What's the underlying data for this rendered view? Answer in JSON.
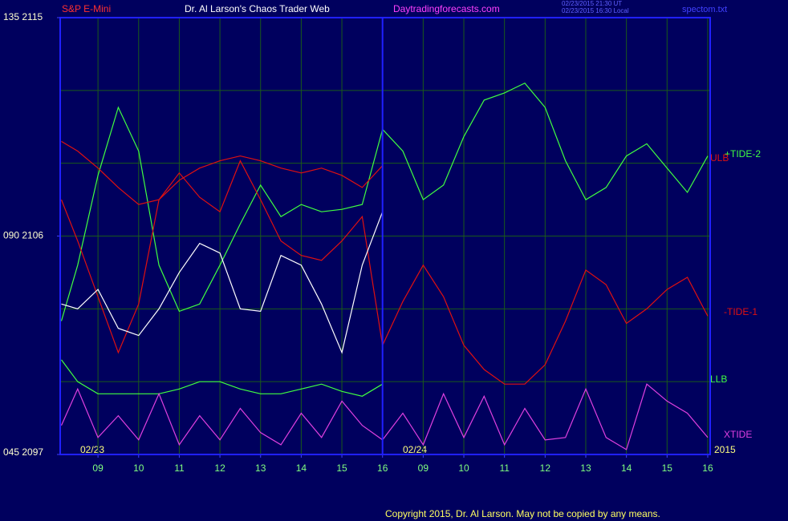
{
  "chart_data": {
    "type": "line",
    "title": "Dr. Al Larson's Chaos Trader Web",
    "symbol": "S&P E-Mini",
    "website": "Daytradingforecasts.com",
    "timestamps": [
      "02/23/2015 21:30 UT",
      "02/23/2015 16:30 Local"
    ],
    "file": "spectom.txt",
    "copyright": "Copyright 2015, Dr. Al Larson. May not be copied by any means.",
    "date_labels": [
      "02/23",
      "02/24"
    ],
    "year_label": "2015",
    "x": [
      -0.9,
      -0.5,
      0,
      0.5,
      1,
      1.5,
      2,
      2.5,
      3,
      3.5,
      4,
      4.5,
      5,
      5.5,
      6,
      6.5,
      7,
      7.5,
      8,
      8.5,
      9,
      9.5,
      10,
      10.5,
      11,
      11.5,
      12,
      12.5,
      13,
      13.5,
      14,
      14.5,
      15
    ],
    "xlim": [
      -0.93,
      15.06
    ],
    "xticks": [
      {
        "value": 0,
        "label": "09"
      },
      {
        "value": 1,
        "label": "10"
      },
      {
        "value": 2,
        "label": "11"
      },
      {
        "value": 3,
        "label": "12"
      },
      {
        "value": 4,
        "label": "13"
      },
      {
        "value": 5,
        "label": "14"
      },
      {
        "value": 6,
        "label": "15"
      },
      {
        "value": 7,
        "label": "16"
      },
      {
        "value": 8,
        "label": "09"
      },
      {
        "value": 9,
        "label": "10"
      },
      {
        "value": 10,
        "label": "11"
      },
      {
        "value": 11,
        "label": "12"
      },
      {
        "value": 12,
        "label": "13"
      },
      {
        "value": 13,
        "label": "14"
      },
      {
        "value": 14,
        "label": "15"
      },
      {
        "value": 15,
        "label": "16"
      }
    ],
    "now_x": 7,
    "ylim": [
      2097,
      2115
    ],
    "yticks": [
      {
        "value": 2115,
        "label": "135  2115"
      },
      {
        "value": 2106,
        "label": "090  2106"
      },
      {
        "value": 2097,
        "label": "045  2097"
      }
    ],
    "ygrid": [
      2100,
      2103,
      2106,
      2109,
      2112
    ],
    "grid": true,
    "series": [
      {
        "name": "+TIDE-2",
        "color": "#40ff40",
        "values": [
          2102.5,
          2104.8,
          2108.5,
          2111.3,
          2109.5,
          2104.8,
          2102.9,
          2103.2,
          2104.8,
          2106.5,
          2108.1,
          2106.8,
          2107.3,
          2107.0,
          2107.1,
          2107.3,
          2110.4,
          2109.5,
          2107.5,
          2108.1,
          2110.1,
          2111.6,
          2111.9,
          2112.3,
          2111.3,
          2109.1,
          2107.5,
          2108.0,
          2109.3,
          2109.8,
          2108.8,
          2107.8,
          2109.3
        ]
      },
      {
        "name": "ULB",
        "color": "#e01010",
        "values": [
          2109.9,
          2109.5,
          2108.8,
          2108.0,
          2107.3,
          2107.5,
          2108.3,
          2108.8,
          2109.1,
          2109.3,
          2109.1,
          2108.8,
          2108.6,
          2108.8,
          2108.5,
          2108.0,
          2108.9,
          null,
          null,
          null,
          null,
          null,
          null,
          null,
          null,
          null,
          null,
          null,
          null,
          null,
          null,
          null,
          null
        ]
      },
      {
        "name": "-TIDE-1",
        "color": "#e01010",
        "values": [
          2107.5,
          2105.8,
          2103.5,
          2101.2,
          2103.2,
          2107.5,
          2108.6,
          2107.6,
          2107.0,
          2109.1,
          2107.5,
          2105.8,
          2105.2,
          2105.0,
          2105.8,
          2106.8,
          2101.5,
          2103.3,
          2104.8,
          2103.5,
          2101.5,
          2100.5,
          2099.9,
          2099.9,
          2100.7,
          2102.5,
          2104.6,
          2104.0,
          2102.4,
          2103.0,
          2103.8,
          2104.3,
          2102.7
        ]
      },
      {
        "name": "LLB",
        "color": "#40ff40",
        "values": [
          2100.9,
          2100.0,
          2099.5,
          2099.5,
          2099.5,
          2099.5,
          2099.7,
          2100.0,
          2100.0,
          2099.7,
          2099.5,
          2099.5,
          2099.7,
          2099.9,
          2099.6,
          2099.4,
          2099.9,
          null,
          null,
          null,
          null,
          null,
          null,
          null,
          null,
          null,
          null,
          null,
          null,
          null,
          null,
          null,
          null
        ]
      },
      {
        "name": "XTIDE",
        "color": "#e040e0",
        "values": [
          2098.2,
          2099.7,
          2097.7,
          2098.6,
          2097.6,
          2099.5,
          2097.4,
          2098.6,
          2097.6,
          2098.9,
          2097.9,
          2097.4,
          2098.7,
          2097.7,
          2099.2,
          2098.2,
          2097.6,
          2098.7,
          2097.4,
          2099.5,
          2097.7,
          2099.4,
          2097.4,
          2098.9,
          2097.6,
          2097.7,
          2099.7,
          2097.7,
          2097.2,
          2099.9,
          2099.2,
          2098.7,
          2097.7
        ]
      },
      {
        "color": "#ffffff",
        "values": [
          2103.2,
          2103.0,
          2103.8,
          2102.2,
          2101.9,
          2103.0,
          2104.5,
          2105.7,
          2105.3,
          2103.0,
          2102.9,
          2105.2,
          2104.8,
          2103.2,
          2101.2,
          2104.8,
          2107.0,
          null,
          null,
          null,
          null,
          null,
          null,
          null,
          null,
          null,
          null,
          null,
          null,
          null,
          null,
          null,
          null
        ]
      }
    ]
  }
}
